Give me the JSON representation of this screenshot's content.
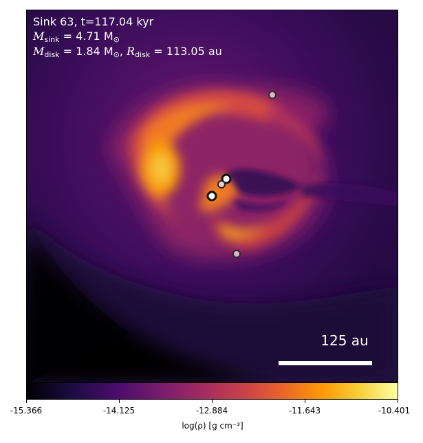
{
  "header": {
    "line1": "Sink 63, t=117.04 kyr",
    "line2_symbol": "M",
    "line2_sub": "sink",
    "line2_value": " = 4.71 M",
    "line2_unit_sub": "⊙",
    "line3_symbol": "M",
    "line3_sub": "disk",
    "line3_value": " = 1.84 M",
    "line3_unit_sub": "⊙",
    "line3_sep": ", ",
    "line3_symbol2": "R",
    "line3_sub2": "disk",
    "line3_value2": " = 113.05 au"
  },
  "scale_bar": {
    "label": "125 au"
  },
  "colorbar": {
    "ticks": [
      "-15.366",
      "-14.125",
      "-12.884",
      "-11.643",
      "-10.401"
    ],
    "label": "log(ρ) [g cm⁻³]",
    "colormap": "inferno"
  },
  "sinks": [
    {
      "kind": "small"
    },
    {
      "kind": "primary"
    },
    {
      "kind": "secondary"
    },
    {
      "kind": "primary"
    },
    {
      "kind": "small"
    }
  ]
}
